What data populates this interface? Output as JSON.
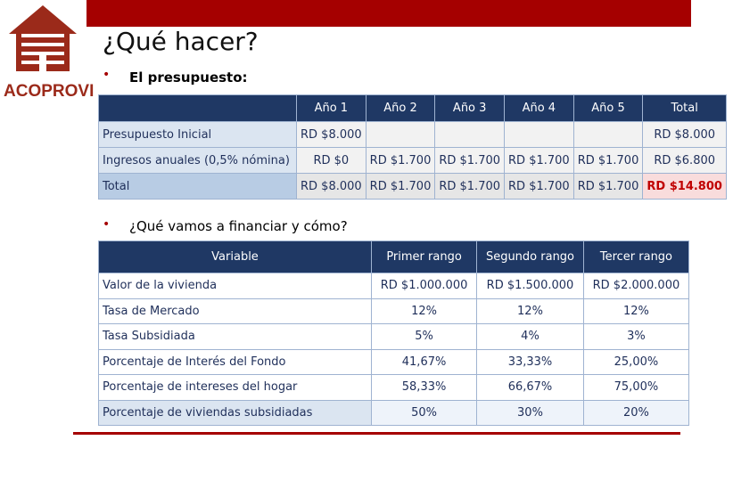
{
  "logo": {
    "text": "ACOPROVI"
  },
  "header": {
    "title": "¿Qué hacer?"
  },
  "bullets": [
    "El presupuesto:",
    "¿Qué  vamos a financiar y cómo?"
  ],
  "budget_table": {
    "columns": [
      "Año 1",
      "Año 2",
      "Año 3",
      "Año 4",
      "Año 5",
      "Total"
    ],
    "rows": [
      [
        "Presupuesto Inicial",
        "RD $8.000",
        "",
        "",
        "",
        "",
        "RD $8.000"
      ],
      [
        "Ingresos anuales (0,5% nómina)",
        "RD $0",
        "RD $1.700",
        "RD $1.700",
        "RD $1.700",
        "RD $1.700",
        "RD $6.800"
      ],
      [
        "Total",
        "RD $8.000",
        "RD $1.700",
        "RD $1.700",
        "RD $1.700",
        "RD $1.700",
        "RD $14.800"
      ]
    ]
  },
  "finance_table": {
    "columns": [
      "Variable",
      "Primer rango",
      "Segundo rango",
      "Tercer rango"
    ],
    "rows": [
      [
        "Valor de la vivienda",
        "RD $1.000.000",
        "RD $1.500.000",
        "RD $2.000.000"
      ],
      [
        "Tasa de Mercado",
        "12%",
        "12%",
        "12%"
      ],
      [
        "Tasa Subsidiada",
        "5%",
        "4%",
        "3%"
      ],
      [
        "Porcentaje de Interés del Fondo",
        "41,67%",
        "33,33%",
        "25,00%"
      ],
      [
        "Porcentaje de intereses del hogar",
        "58,33%",
        "66,67%",
        "75,00%"
      ],
      [
        "Porcentaje de viviendas subsidiadas",
        "50%",
        "30%",
        "20%"
      ]
    ]
  }
}
